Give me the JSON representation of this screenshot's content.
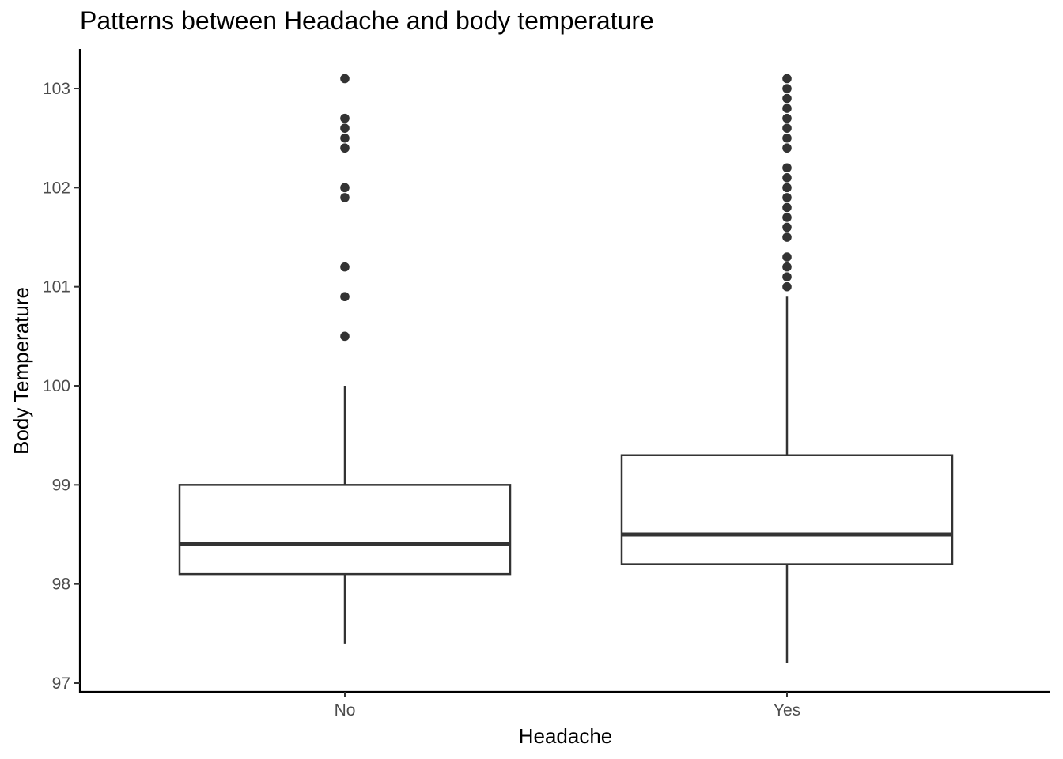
{
  "chart_data": {
    "type": "boxplot",
    "title": "Patterns between Headache and body temperature",
    "xlabel": "Headache",
    "ylabel": "Body Temperature",
    "categories": [
      "No",
      "Yes"
    ],
    "ylim": [
      96.9,
      103.4
    ],
    "yticks": [
      97,
      98,
      99,
      100,
      101,
      102,
      103
    ],
    "grid": false,
    "boxes": [
      {
        "category": "No",
        "whisker_low": 97.4,
        "q1": 98.1,
        "median": 98.4,
        "q3": 99.0,
        "whisker_high": 100.0,
        "outliers": [
          100.5,
          100.9,
          101.2,
          101.9,
          102.0,
          102.4,
          102.5,
          102.6,
          102.7,
          103.1
        ]
      },
      {
        "category": "Yes",
        "whisker_low": 97.2,
        "q1": 98.2,
        "median": 98.5,
        "q3": 99.3,
        "whisker_high": 100.9,
        "outliers": [
          101.0,
          101.1,
          101.2,
          101.3,
          101.5,
          101.6,
          101.7,
          101.8,
          101.9,
          102.0,
          102.1,
          102.2,
          102.4,
          102.5,
          102.6,
          102.7,
          102.8,
          102.9,
          103.0,
          103.1
        ]
      }
    ],
    "colors": {
      "box_stroke": "#333333",
      "box_fill": "#ffffff",
      "point": "#333333",
      "axis": "#000000",
      "tick_text": "#4d4d4d"
    }
  }
}
